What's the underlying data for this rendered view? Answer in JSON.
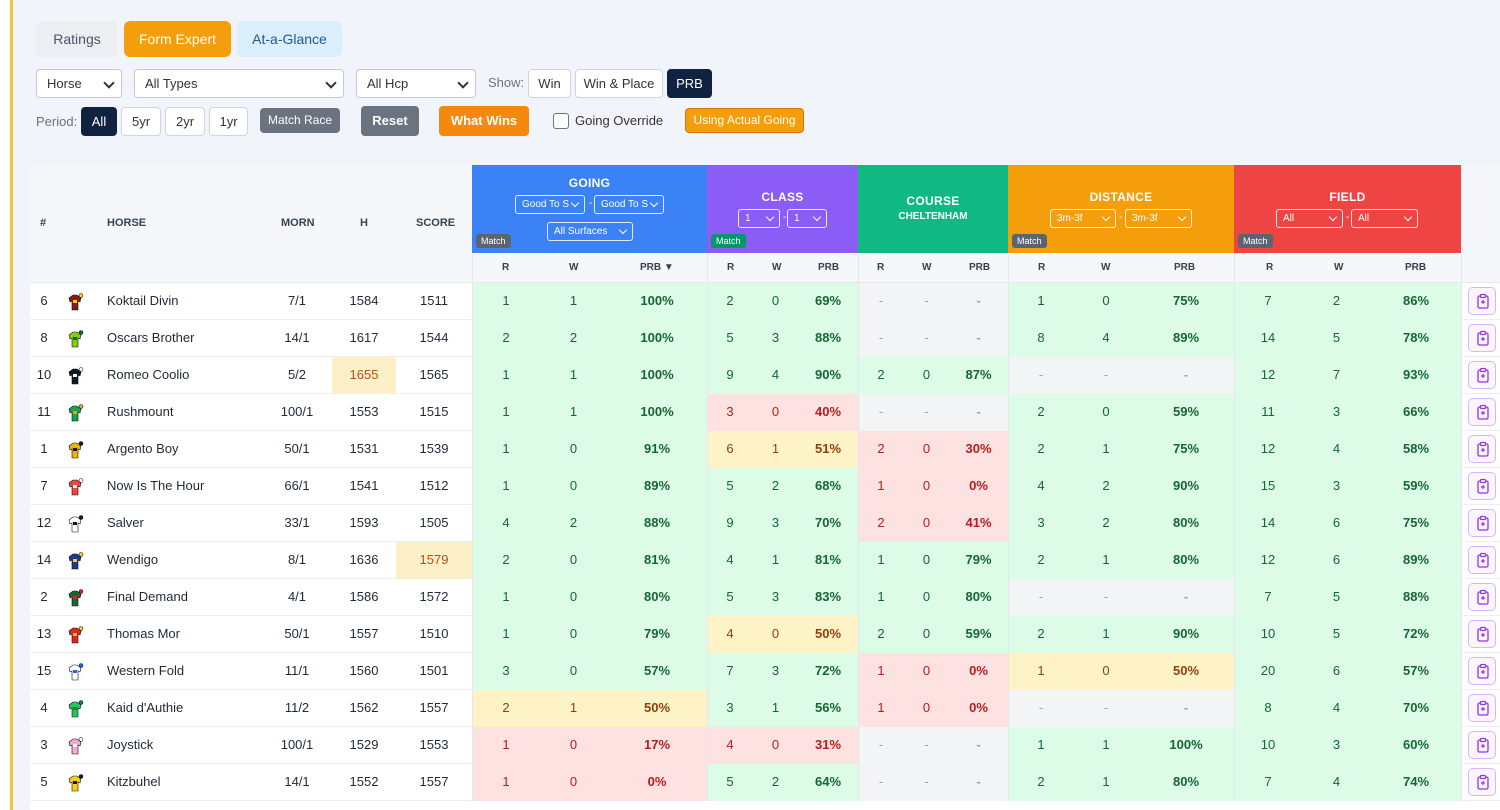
{
  "tabs": [
    {
      "label": "Ratings",
      "active": false
    },
    {
      "label": "Form Expert",
      "active": true
    },
    {
      "label": "At-a-Glance",
      "active": false
    }
  ],
  "filters": {
    "type_select": "Horse",
    "race_types_select": "All Types",
    "hcp_select": "All Hcp",
    "show_label": "Show:",
    "show_options": [
      "Win",
      "Win & Place",
      "PRB"
    ],
    "show_selected": "PRB",
    "period_label": "Period:",
    "period_options": [
      "All",
      "5yr",
      "2yr",
      "1yr"
    ],
    "period_selected": "All",
    "match_race_label": "Match Race",
    "reset_label": "Reset",
    "what_wins_label": "What Wins",
    "going_override_label": "Going Override",
    "going_override_checked": false,
    "using_actual_going_label": "Using Actual Going"
  },
  "table": {
    "columns": {
      "num": "#",
      "horse": "HORSE",
      "morn": "MORN",
      "h": "H",
      "score": "SCORE"
    },
    "sub_columns": {
      "r": "R",
      "w": "W",
      "prb": "PRB",
      "prb_sorted": "PRB ▼"
    },
    "groups": {
      "going": {
        "title": "GOING",
        "from": "Good To S",
        "to": "Good To S",
        "surface": "All Surfaces",
        "match": "Match",
        "color": "#3b82f6"
      },
      "class": {
        "title": "CLASS",
        "from": "1",
        "to": "1",
        "match": "Match",
        "color": "#8b5cf6"
      },
      "course": {
        "title": "COURSE",
        "subtitle": "CHELTENHAM",
        "color": "#10b981"
      },
      "distance": {
        "title": "DISTANCE",
        "from": "3m-3f",
        "to": "3m-3f",
        "match": "Match",
        "color": "#f59e0b"
      },
      "field": {
        "title": "FIELD",
        "from": "All",
        "to": "All",
        "match": "Match",
        "color": "#ef4444"
      }
    },
    "rows": [
      {
        "num": "6",
        "horse": "Koktail Divin",
        "morn": "7/1",
        "h": "1584",
        "score": "1511",
        "going": [
          "1",
          "1",
          "100%"
        ],
        "class": [
          "2",
          "0",
          "69%"
        ],
        "course": [
          "-",
          "-",
          "-"
        ],
        "distance": [
          "1",
          "0",
          "75%"
        ],
        "field": [
          "7",
          "2",
          "86%"
        ]
      },
      {
        "num": "8",
        "horse": "Oscars Brother",
        "morn": "14/1",
        "h": "1617",
        "score": "1544",
        "going": [
          "2",
          "2",
          "100%"
        ],
        "class": [
          "5",
          "3",
          "88%"
        ],
        "course": [
          "-",
          "-",
          "-"
        ],
        "distance": [
          "8",
          "4",
          "89%"
        ],
        "field": [
          "14",
          "5",
          "78%"
        ]
      },
      {
        "num": "10",
        "horse": "Romeo Coolio",
        "morn": "5/2",
        "h": "1655",
        "score": "1565",
        "going": [
          "1",
          "1",
          "100%"
        ],
        "class": [
          "9",
          "4",
          "90%"
        ],
        "course": [
          "2",
          "0",
          "87%"
        ],
        "distance": [
          "-",
          "-",
          "-"
        ],
        "field": [
          "12",
          "7",
          "93%"
        ]
      },
      {
        "num": "11",
        "horse": "Rushmount",
        "morn": "100/1",
        "h": "1553",
        "score": "1515",
        "going": [
          "1",
          "1",
          "100%"
        ],
        "class": [
          "3",
          "0",
          "40%"
        ],
        "course": [
          "-",
          "-",
          "-"
        ],
        "distance": [
          "2",
          "0",
          "59%"
        ],
        "field": [
          "11",
          "3",
          "66%"
        ]
      },
      {
        "num": "1",
        "horse": "Argento Boy",
        "morn": "50/1",
        "h": "1531",
        "score": "1539",
        "going": [
          "1",
          "0",
          "91%"
        ],
        "class": [
          "6",
          "1",
          "51%"
        ],
        "course": [
          "2",
          "0",
          "30%"
        ],
        "distance": [
          "2",
          "1",
          "75%"
        ],
        "field": [
          "12",
          "4",
          "58%"
        ]
      },
      {
        "num": "7",
        "horse": "Now Is The Hour",
        "morn": "66/1",
        "h": "1541",
        "score": "1512",
        "going": [
          "1",
          "0",
          "89%"
        ],
        "class": [
          "5",
          "2",
          "68%"
        ],
        "course": [
          "1",
          "0",
          "0%"
        ],
        "distance": [
          "4",
          "2",
          "90%"
        ],
        "field": [
          "15",
          "3",
          "59%"
        ]
      },
      {
        "num": "12",
        "horse": "Salver",
        "morn": "33/1",
        "h": "1593",
        "score": "1505",
        "going": [
          "4",
          "2",
          "88%"
        ],
        "class": [
          "9",
          "3",
          "70%"
        ],
        "course": [
          "2",
          "0",
          "41%"
        ],
        "distance": [
          "3",
          "2",
          "80%"
        ],
        "field": [
          "14",
          "6",
          "75%"
        ]
      },
      {
        "num": "14",
        "horse": "Wendigo",
        "morn": "8/1",
        "h": "1636",
        "score": "1579",
        "going": [
          "2",
          "0",
          "81%"
        ],
        "class": [
          "4",
          "1",
          "81%"
        ],
        "course": [
          "1",
          "0",
          "79%"
        ],
        "distance": [
          "2",
          "1",
          "80%"
        ],
        "field": [
          "12",
          "6",
          "89%"
        ]
      },
      {
        "num": "2",
        "horse": "Final Demand",
        "morn": "4/1",
        "h": "1586",
        "score": "1572",
        "going": [
          "1",
          "0",
          "80%"
        ],
        "class": [
          "5",
          "3",
          "83%"
        ],
        "course": [
          "1",
          "0",
          "80%"
        ],
        "distance": [
          "-",
          "-",
          "-"
        ],
        "field": [
          "7",
          "5",
          "88%"
        ]
      },
      {
        "num": "13",
        "horse": "Thomas Mor",
        "morn": "50/1",
        "h": "1557",
        "score": "1510",
        "going": [
          "1",
          "0",
          "79%"
        ],
        "class": [
          "4",
          "0",
          "50%"
        ],
        "course": [
          "2",
          "0",
          "59%"
        ],
        "distance": [
          "2",
          "1",
          "90%"
        ],
        "field": [
          "10",
          "5",
          "72%"
        ]
      },
      {
        "num": "15",
        "horse": "Western Fold",
        "morn": "11/1",
        "h": "1560",
        "score": "1501",
        "going": [
          "3",
          "0",
          "57%"
        ],
        "class": [
          "7",
          "3",
          "72%"
        ],
        "course": [
          "1",
          "0",
          "0%"
        ],
        "distance": [
          "1",
          "0",
          "50%"
        ],
        "field": [
          "20",
          "6",
          "57%"
        ]
      },
      {
        "num": "4",
        "horse": "Kaid d'Authie",
        "morn": "11/2",
        "h": "1562",
        "score": "1557",
        "going": [
          "2",
          "1",
          "50%"
        ],
        "class": [
          "3",
          "1",
          "56%"
        ],
        "course": [
          "1",
          "0",
          "0%"
        ],
        "distance": [
          "-",
          "-",
          "-"
        ],
        "field": [
          "8",
          "4",
          "70%"
        ]
      },
      {
        "num": "3",
        "horse": "Joystick",
        "morn": "100/1",
        "h": "1529",
        "score": "1553",
        "going": [
          "1",
          "0",
          "17%"
        ],
        "class": [
          "4",
          "0",
          "31%"
        ],
        "course": [
          "-",
          "-",
          "-"
        ],
        "distance": [
          "1",
          "1",
          "100%"
        ],
        "field": [
          "10",
          "3",
          "60%"
        ]
      },
      {
        "num": "5",
        "horse": "Kitzbuhel",
        "morn": "14/1",
        "h": "1552",
        "score": "1557",
        "going": [
          "1",
          "0",
          "0%"
        ],
        "class": [
          "5",
          "2",
          "64%"
        ],
        "course": [
          "-",
          "-",
          "-"
        ],
        "distance": [
          "2",
          "1",
          "80%"
        ],
        "field": [
          "7",
          "4",
          "74%"
        ]
      }
    ],
    "row_icon": "notes-icon"
  },
  "colors": {
    "good": "#dcfce7",
    "bad": "#fee2e2",
    "mid": "#fef3c7",
    "none": "#f3f4f6",
    "accent_orange": "#f59e0b",
    "navy": "#0f2340"
  }
}
